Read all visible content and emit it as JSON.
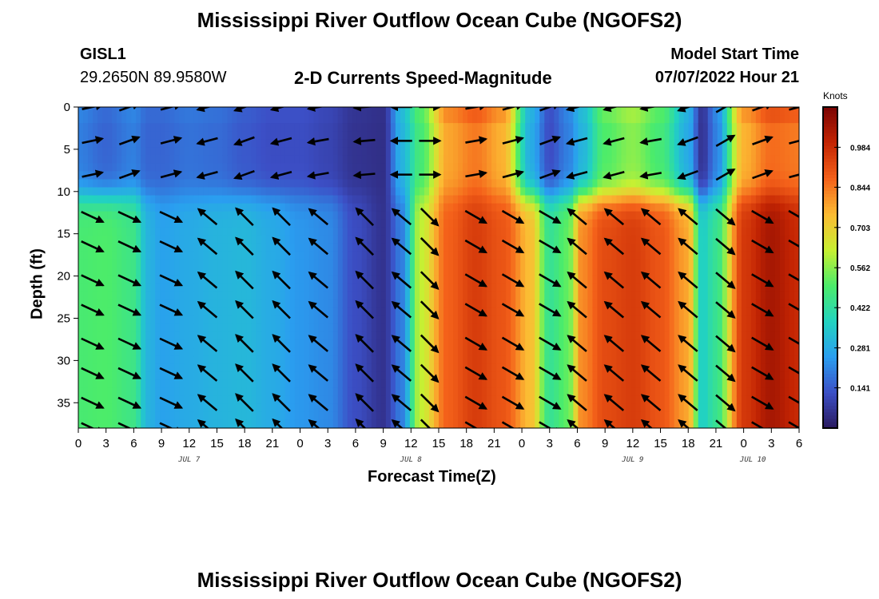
{
  "header": {
    "title": "Mississippi River Outflow Ocean Cube (NGOFS2)",
    "station": "GISL1",
    "location": "29.2650N  89.9580W",
    "subtitle": "2-D Currents Speed-Magnitude",
    "model_start_label": "Model Start Time",
    "model_start_value": "07/07/2022 Hour 21"
  },
  "footer": {
    "title": "Mississippi River Outflow Ocean Cube (NGOFS2)"
  },
  "chart_data": {
    "type": "heatmap",
    "title": "2-D Currents Speed-Magnitude",
    "xlabel": "Forecast Time(Z)",
    "ylabel": "Depth (ft)",
    "x_unit": "hours since 07/07/2022 00Z",
    "xlim": [
      0,
      78
    ],
    "ylim": [
      38,
      0
    ],
    "x_ticks": [
      0,
      3,
      6,
      9,
      12,
      15,
      18,
      21,
      24,
      27,
      30,
      33,
      36,
      39,
      42,
      45,
      48,
      51,
      54,
      57,
      60,
      63,
      66,
      69,
      72,
      75,
      78
    ],
    "x_tick_labels": [
      "0",
      "3",
      "6",
      "9",
      "12",
      "15",
      "18",
      "21",
      "0",
      "3",
      "6",
      "9",
      "12",
      "15",
      "18",
      "21",
      "0",
      "3",
      "6",
      "9",
      "12",
      "15",
      "18",
      "21",
      "0",
      "3",
      "6"
    ],
    "day_labels": [
      {
        "x": 12,
        "text": "JUL 7"
      },
      {
        "x": 36,
        "text": "JUL 8"
      },
      {
        "x": 60,
        "text": "JUL 9"
      },
      {
        "x": 73,
        "text": "JUL 10"
      }
    ],
    "y_ticks": [
      0,
      5,
      10,
      15,
      20,
      25,
      30,
      35
    ],
    "colorbar": {
      "title": "Knots",
      "min": 0.0,
      "max": 1.125,
      "ticks": [
        0.141,
        0.281,
        0.422,
        0.562,
        0.703,
        0.844,
        0.984
      ],
      "colors": [
        "#2a1a5e",
        "#3c4fc6",
        "#2a9ef0",
        "#22d3c0",
        "#4cec6a",
        "#c8f032",
        "#fcbb33",
        "#f4611a",
        "#c42503",
        "#7a0403"
      ]
    },
    "speed_model": {
      "time_hours": [
        0,
        3,
        6,
        7.5,
        9,
        12,
        15,
        18,
        21,
        24,
        27,
        30,
        33,
        35,
        37,
        40,
        43,
        46,
        49,
        51,
        53,
        54.5,
        57,
        60,
        63,
        66,
        67.5,
        69,
        72,
        75,
        78
      ],
      "lower_layer_knots": [
        0.49,
        0.5,
        0.46,
        0.3,
        0.26,
        0.28,
        0.3,
        0.31,
        0.28,
        0.24,
        0.22,
        0.12,
        0.06,
        0.2,
        0.62,
        0.88,
        0.95,
        0.9,
        0.74,
        0.44,
        0.52,
        0.82,
        0.92,
        0.95,
        0.9,
        0.78,
        0.36,
        0.44,
        0.96,
        1.05,
        0.99
      ],
      "upper_layer_knots": [
        0.2,
        0.16,
        0.2,
        0.16,
        0.16,
        0.18,
        0.17,
        0.14,
        0.12,
        0.12,
        0.1,
        0.06,
        0.05,
        0.3,
        0.48,
        0.78,
        0.84,
        0.76,
        0.28,
        0.12,
        0.2,
        0.3,
        0.5,
        0.56,
        0.48,
        0.28,
        0.06,
        0.2,
        0.76,
        0.86,
        0.84
      ],
      "layer_boundary_ft": 10.5
    },
    "vectors": {
      "time_hours": [
        1.5,
        5.5,
        10,
        14,
        18,
        22,
        26,
        31,
        35,
        38,
        43,
        47,
        51,
        54,
        58,
        62,
        66,
        70,
        74,
        78
      ],
      "depths_ft": [
        0,
        4,
        8,
        13,
        16.5,
        20.5,
        24,
        28,
        31.5,
        35,
        38
      ],
      "upper_dir_deg": [
        12,
        20,
        15,
        195,
        200,
        195,
        190,
        185,
        180,
        0,
        10,
        15,
        20,
        195,
        195,
        190,
        200,
        30,
        20,
        15
      ],
      "lower_dir_deg": [
        -25,
        -25,
        -25,
        140,
        135,
        135,
        140,
        135,
        140,
        -45,
        -30,
        -30,
        -30,
        140,
        140,
        140,
        140,
        -40,
        -30,
        -30
      ]
    }
  }
}
